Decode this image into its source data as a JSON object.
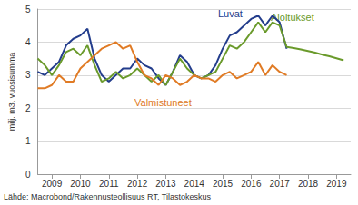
{
  "chart_data": {
    "type": "line",
    "ylabel": "milj. m3, vuosisumma",
    "source": "Lähde: Macrobond/Rakennusteollisuus RT, Tilastokeskus",
    "x": [
      2009,
      2009.25,
      2009.5,
      2009.75,
      2010,
      2010.25,
      2010.5,
      2010.75,
      2011,
      2011.25,
      2011.5,
      2011.75,
      2012,
      2012.25,
      2012.5,
      2012.75,
      2013,
      2013.25,
      2013.5,
      2013.75,
      2014,
      2014.25,
      2014.5,
      2014.75,
      2015,
      2015.25,
      2015.5,
      2015.75,
      2016,
      2016.25,
      2016.5,
      2016.75,
      2017,
      2017.25,
      2017.5,
      2017.75,
      2018,
      2018.25,
      2018.5,
      2018.75,
      2019,
      2019.25,
      2019.5,
      2019.75
    ],
    "series": [
      {
        "name": "Luvat",
        "color": "#233d8c",
        "values": [
          3.1,
          3.0,
          3.2,
          3.4,
          3.9,
          4.1,
          4.2,
          4.4,
          3.5,
          3.0,
          2.8,
          3.0,
          3.2,
          3.2,
          3.5,
          3.3,
          3.2,
          2.9,
          2.7,
          3.1,
          3.6,
          3.4,
          3.0,
          2.9,
          3.0,
          3.3,
          3.8,
          4.2,
          4.3,
          4.5,
          4.7,
          4.8,
          4.5,
          4.8,
          4.6,
          3.8,
          null,
          null,
          null,
          null,
          null,
          null,
          null,
          null
        ]
      },
      {
        "name": "Aloitukset",
        "color": "#6a9a2b",
        "values": [
          3.5,
          3.3,
          3.0,
          3.3,
          3.7,
          3.8,
          3.6,
          3.9,
          3.3,
          2.8,
          2.9,
          3.1,
          2.9,
          3.0,
          3.2,
          3.0,
          2.8,
          3.0,
          2.7,
          3.1,
          3.5,
          3.2,
          3.0,
          2.9,
          3.0,
          3.1,
          3.5,
          3.9,
          3.8,
          4.0,
          4.3,
          4.6,
          4.3,
          4.6,
          4.5,
          3.85,
          3.82,
          3.78,
          3.73,
          3.68,
          3.62,
          3.57,
          3.51,
          3.45
        ]
      },
      {
        "name": "Valmistuneet",
        "color": "#e07b25",
        "values": [
          2.6,
          2.6,
          2.7,
          3.0,
          2.8,
          2.8,
          3.2,
          3.4,
          3.6,
          3.8,
          3.9,
          4.0,
          3.8,
          3.9,
          3.4,
          3.0,
          2.9,
          2.7,
          3.0,
          2.9,
          2.7,
          2.8,
          3.0,
          2.9,
          2.9,
          2.8,
          3.0,
          3.1,
          2.9,
          3.0,
          3.1,
          3.4,
          3.0,
          3.3,
          3.1,
          3.0,
          null,
          null,
          null,
          null,
          null,
          null,
          null,
          null
        ]
      }
    ],
    "xlim": [
      2009,
      2020
    ],
    "xticks": [
      {
        "value": 2009.5,
        "label": "2009"
      },
      {
        "value": 2010.5,
        "label": "2010"
      },
      {
        "value": 2011.5,
        "label": "2011"
      },
      {
        "value": 2012.5,
        "label": "2012"
      },
      {
        "value": 2013.5,
        "label": "2013"
      },
      {
        "value": 2014.5,
        "label": "2014"
      },
      {
        "value": 2015.5,
        "label": "2015"
      },
      {
        "value": 2016.5,
        "label": "2016"
      },
      {
        "value": 2017.5,
        "label": "2017"
      },
      {
        "value": 2018.5,
        "label": "2018"
      },
      {
        "value": 2019.5,
        "label": "2019"
      }
    ],
    "ylim": [
      0,
      5
    ],
    "yticks": [
      0,
      1,
      2,
      3,
      4,
      5
    ],
    "grid": true
  }
}
